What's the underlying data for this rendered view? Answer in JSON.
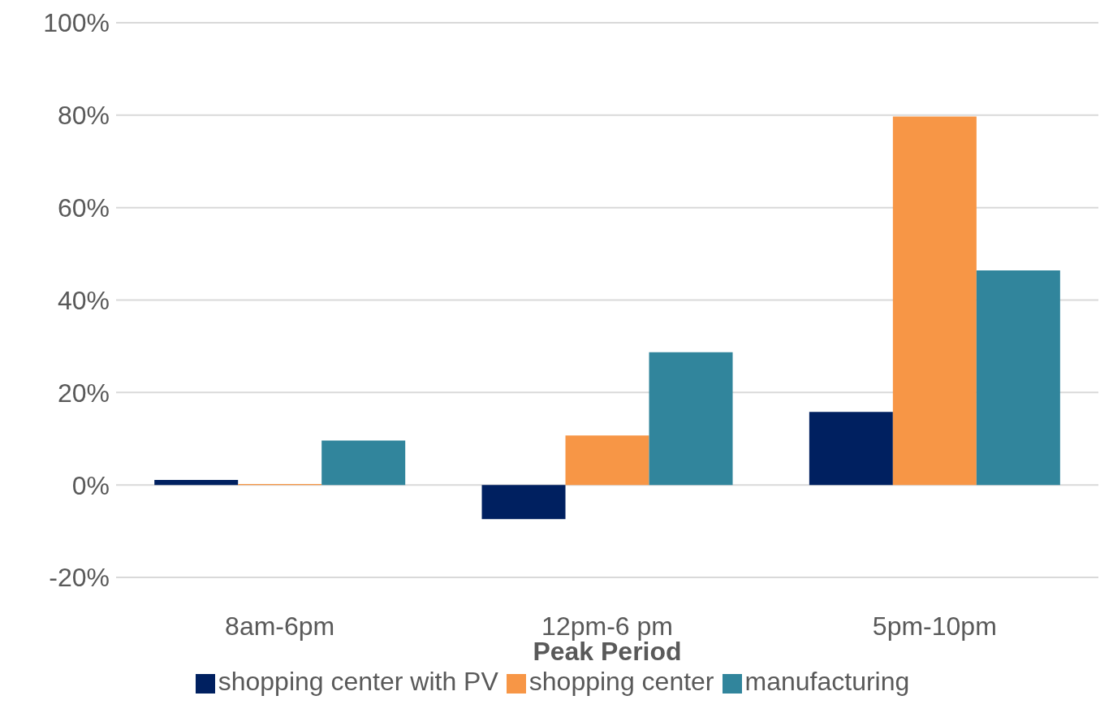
{
  "chart_data": {
    "type": "bar",
    "xlabel": "Peak Period",
    "categories": [
      "8am-6pm",
      "12pm-6 pm",
      "5pm-10pm"
    ],
    "series": [
      {
        "name": "shopping center with PV",
        "color": "#002060",
        "values": [
          1.1,
          -7.4,
          15.8
        ]
      },
      {
        "name": "shopping center",
        "color": "#f79646",
        "values": [
          0.2,
          10.7,
          79.7
        ]
      },
      {
        "name": "manufacturing",
        "color": "#31859c",
        "values": [
          9.6,
          28.7,
          46.4
        ]
      }
    ],
    "ylim": [
      -20,
      100
    ],
    "yticks": [
      {
        "value": -20,
        "label": "-20%"
      },
      {
        "value": 0,
        "label": "0%"
      },
      {
        "value": 20,
        "label": "20%"
      },
      {
        "value": 40,
        "label": "40%"
      },
      {
        "value": 60,
        "label": "60%"
      },
      {
        "value": 80,
        "label": "80%"
      },
      {
        "value": 100,
        "label": "100%"
      }
    ],
    "grid": "y",
    "legend": "bottom"
  }
}
